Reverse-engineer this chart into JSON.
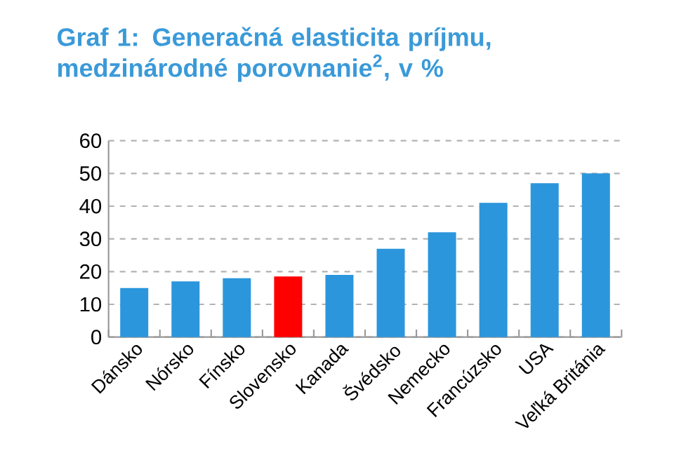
{
  "chart_data": {
    "type": "bar",
    "title": "Graf 1: Generačná elasticita príjmu, medzinárodné porovnanie$^{2}$, v %",
    "categories": [
      "Dánsko",
      "Nórsko",
      "Fínsko",
      "Slovensko",
      "Kanada",
      "Švédsko",
      "Nemecko",
      "Francúzsko",
      "USA",
      "Veľká Británia"
    ],
    "values": [
      15,
      17,
      18,
      18.5,
      19,
      27,
      32,
      41,
      47,
      50
    ],
    "colors": [
      "#2b96dc",
      "#2b96dc",
      "#2b96dc",
      "#ff0000",
      "#2b96dc",
      "#2b96dc",
      "#2b96dc",
      "#2b96dc",
      "#2b96dc",
      "#2b96dc"
    ],
    "ylim": [
      0,
      60
    ],
    "yticks": [
      0,
      10,
      20,
      30,
      40,
      50,
      60
    ],
    "grid": "y"
  }
}
